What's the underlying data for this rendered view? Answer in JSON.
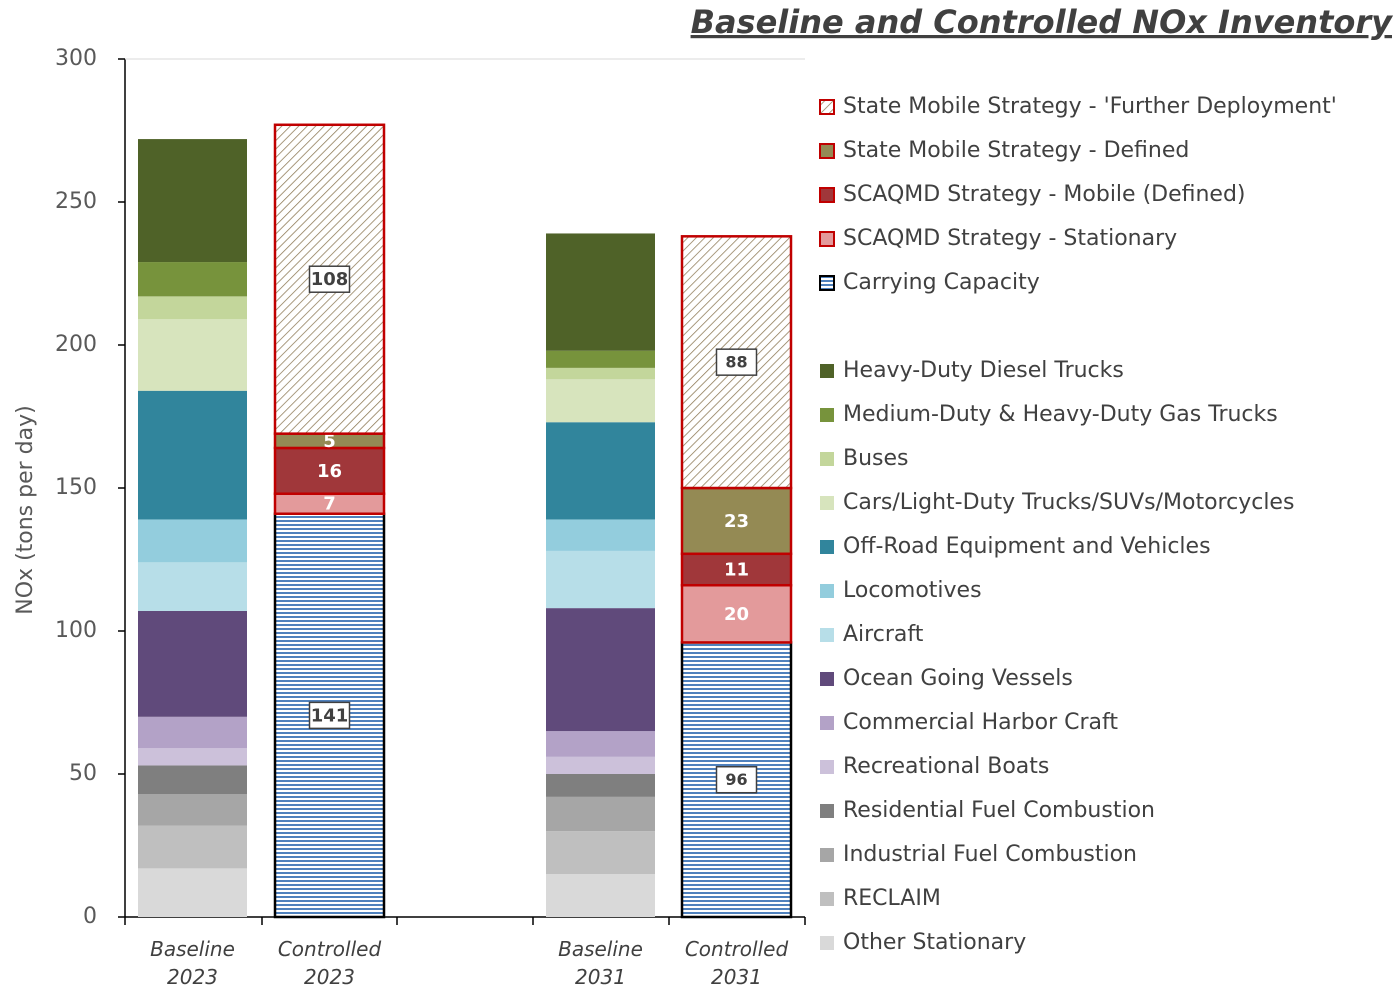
{
  "chart_data": {
    "type": "stacked_bar",
    "title": "Baseline and Controlled NOx Inventory",
    "y_label": "NOx (tons per day)",
    "categories": [
      "Baseline 2023",
      "Controlled 2023",
      "Baseline 2031",
      "Controlled 2031"
    ],
    "ylim": [
      0,
      300
    ],
    "yticks": [
      0,
      50,
      100,
      150,
      200,
      250,
      300
    ],
    "series": [
      {
        "name": "State Mobile Strategy - 'Further Deployment'",
        "color": "#8c7853",
        "pattern": "diagonal",
        "border": "#c00000",
        "values": [
          null,
          108,
          null,
          88
        ]
      },
      {
        "name": "State Mobile Strategy - Defined",
        "color": "#948a54",
        "border": "#c00000",
        "values": [
          null,
          5,
          null,
          23
        ]
      },
      {
        "name": "SCAQMD Strategy - Mobile (Defined)",
        "color": "#a0373a",
        "border": "#c00000",
        "values": [
          null,
          16,
          null,
          11
        ]
      },
      {
        "name": "SCAQMD Strategy - Stationary",
        "color": "#e39a9b",
        "border": "#c00000",
        "values": [
          null,
          7,
          null,
          20
        ]
      },
      {
        "name": "Carrying Capacity",
        "color": "#4f81bd",
        "pattern": "horizontal",
        "border": "#000000",
        "values": [
          null,
          141,
          null,
          96
        ]
      },
      {
        "name": "Heavy-Duty Diesel Trucks",
        "color": "#4f6228",
        "values": [
          43,
          null,
          41,
          null
        ]
      },
      {
        "name": "Medium-Duty & Heavy-Duty Gas Trucks",
        "color": "#77933c",
        "values": [
          12,
          null,
          6,
          null
        ]
      },
      {
        "name": "Buses",
        "color": "#c3d69b",
        "values": [
          8,
          null,
          4,
          null
        ]
      },
      {
        "name": "Cars/Light-Duty Trucks/SUVs/Motorcycles",
        "color": "#d7e4bd",
        "values": [
          25,
          null,
          15,
          null
        ]
      },
      {
        "name": "Off-Road Equipment and Vehicles",
        "color": "#31859c",
        "values": [
          45,
          null,
          34,
          null
        ]
      },
      {
        "name": "Locomotives",
        "color": "#93cddd",
        "values": [
          15,
          null,
          11,
          null
        ]
      },
      {
        "name": "Aircraft",
        "color": "#b7dee8",
        "values": [
          17,
          null,
          20,
          null
        ]
      },
      {
        "name": "Ocean Going Vessels",
        "color": "#604a7b",
        "values": [
          37,
          null,
          43,
          null
        ]
      },
      {
        "name": "Commercial Harbor Craft",
        "color": "#b3a2c7",
        "values": [
          11,
          null,
          9,
          null
        ]
      },
      {
        "name": "Recreational Boats",
        "color": "#ccc1da",
        "values": [
          6,
          null,
          6,
          null
        ]
      },
      {
        "name": "Residential Fuel Combustion",
        "color": "#7f7f7f",
        "values": [
          10,
          null,
          8,
          null
        ]
      },
      {
        "name": "Industrial Fuel Combustion",
        "color": "#a6a6a6",
        "values": [
          11,
          null,
          12,
          null
        ]
      },
      {
        "name": "RECLAIM",
        "color": "#bfbfbf",
        "values": [
          15,
          null,
          15,
          null
        ]
      },
      {
        "name": "Other Stationary",
        "color": "#d9d9d9",
        "values": [
          17,
          null,
          15,
          null
        ]
      }
    ]
  }
}
